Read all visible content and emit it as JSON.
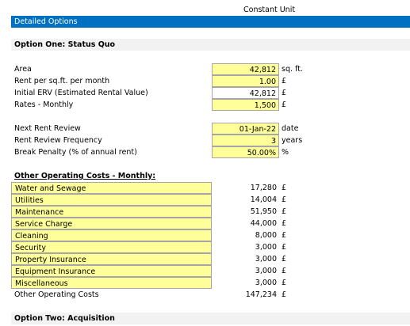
{
  "header": {
    "unit_label": "Constant Unit",
    "title": "Detailed Options"
  },
  "option_one": {
    "title": "Option One: Status Quo",
    "group_1": [
      {
        "label": "Area",
        "value": "42,812",
        "unit": "sq. ft."
      },
      {
        "label": "Rent per sq.ft. per month",
        "value": "1.00",
        "unit": "£"
      },
      {
        "label": "Initial ERV (Estimated Rental Value)",
        "value": "42,812",
        "unit": "£"
      },
      {
        "label": "Rates - Monthly",
        "value": "1,500",
        "unit": "£"
      }
    ],
    "group_2": [
      {
        "label": "Next Rent Review",
        "value": "01-Jan-22",
        "unit": "date"
      },
      {
        "label": "Rent Review Frequency",
        "value": "3",
        "unit": "years"
      },
      {
        "label": "Break Penalty (% of annual rent)",
        "value": "50.00%",
        "unit": "%"
      }
    ],
    "costs_heading": "Other Operating Costs - Monthly:",
    "costs": [
      {
        "label": "Water and Sewage",
        "value": "17,280",
        "unit": "£"
      },
      {
        "label": "Utilities",
        "value": "14,004",
        "unit": "£"
      },
      {
        "label": "Maintenance",
        "value": "51,950",
        "unit": "£"
      },
      {
        "label": "Service Charge",
        "value": "44,000",
        "unit": "£"
      },
      {
        "label": "Cleaning",
        "value": "8,000",
        "unit": "£"
      },
      {
        "label": "Security",
        "value": "3,000",
        "unit": "£"
      },
      {
        "label": "Property Insurance",
        "value": "3,000",
        "unit": "£"
      },
      {
        "label": "Equipment Insurance",
        "value": "3,000",
        "unit": "£"
      },
      {
        "label": "Miscellaneous",
        "value": "3,000",
        "unit": "£"
      }
    ],
    "costs_total": {
      "label": "Other Operating Costs",
      "value": "147,234",
      "unit": "£"
    }
  },
  "option_two": {
    "title": "Option Two: Acquisition"
  }
}
